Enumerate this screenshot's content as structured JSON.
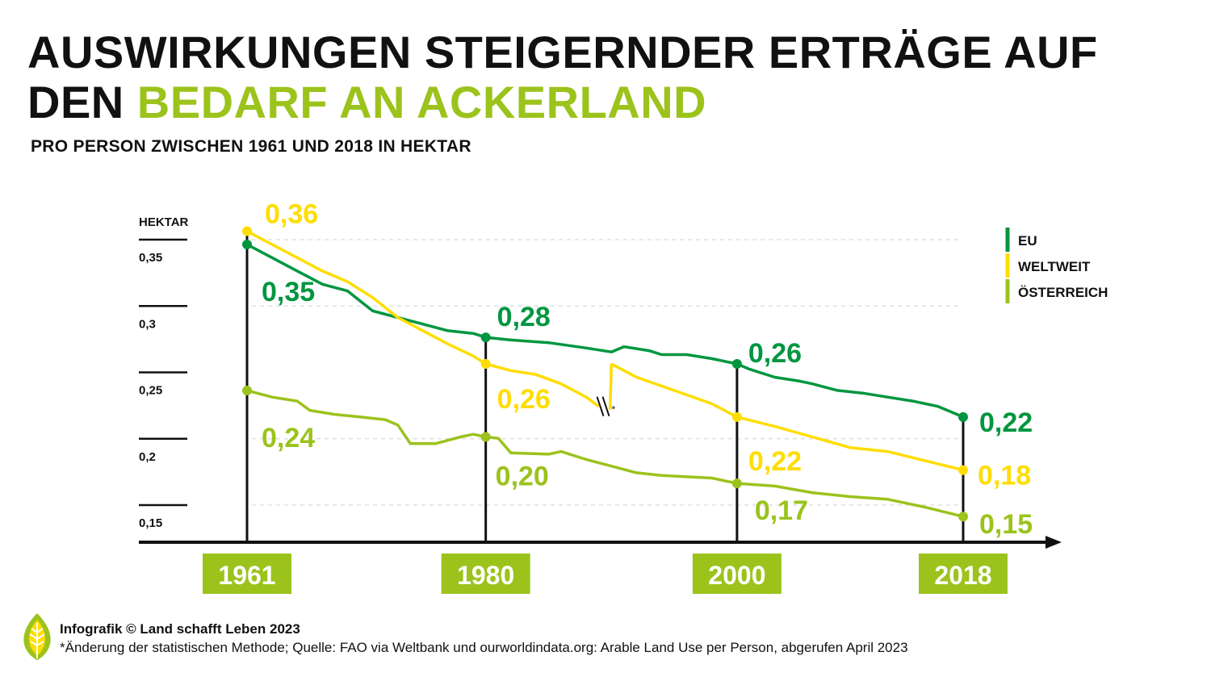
{
  "header": {
    "title_line1": "AUSWIRKUNGEN STEIGERNDER ERTRÄGE AUF",
    "title_line2_plain": "DEN",
    "title_line2_accent": "BEDARF AN ACKERLAND",
    "subtitle": "PRO PERSON ZWISCHEN 1961 UND 2018 IN HEKTAR"
  },
  "colors": {
    "eu": "#00963f",
    "weltweit": "#ffdd00",
    "oesterreich": "#9bc31c",
    "label_bg": "#9bc31c",
    "axis": "#111111"
  },
  "chart_data": {
    "type": "line",
    "ylabel": "HEKTAR",
    "ylim": [
      0.11,
      0.37
    ],
    "xlim": [
      1961,
      2018
    ],
    "y_ticks": [
      {
        "value": 0.35,
        "label": "0,35"
      },
      {
        "value": 0.3,
        "label": "0,3"
      },
      {
        "value": 0.25,
        "label": "0,25"
      },
      {
        "value": 0.2,
        "label": "0,2"
      },
      {
        "value": 0.15,
        "label": "0,15"
      }
    ],
    "grid": true,
    "legend_position": "top-right",
    "x_labels": [
      "1961",
      "1980",
      "2000",
      "2018"
    ],
    "series": [
      {
        "name": "EU",
        "color": "#00963f",
        "x": [
          1961,
          1963,
          1965,
          1967,
          1969,
          1971,
          1973,
          1975,
          1977,
          1979,
          1980,
          1982,
          1985,
          1988,
          1990,
          1991,
          1993,
          1994,
          1996,
          1998,
          2000,
          2001,
          2003,
          2005,
          2006,
          2008,
          2010,
          2012,
          2014,
          2016,
          2018
        ],
        "y": [
          0.35,
          0.34,
          0.33,
          0.32,
          0.315,
          0.3,
          0.295,
          0.29,
          0.285,
          0.283,
          0.28,
          0.278,
          0.276,
          0.272,
          0.269,
          0.273,
          0.27,
          0.267,
          0.267,
          0.264,
          0.26,
          0.256,
          0.25,
          0.247,
          0.245,
          0.24,
          0.238,
          0.235,
          0.232,
          0.228,
          0.22
        ]
      },
      {
        "name": "WELTWEIT",
        "color": "#ffdd00",
        "segments": [
          {
            "x": [
              1961,
              1963,
              1965,
              1967,
              1969,
              1971,
              1973,
              1975,
              1977,
              1979,
              1980,
              1982,
              1984,
              1986,
              1988,
              1989
            ],
            "y": [
              0.36,
              0.35,
              0.34,
              0.33,
              0.322,
              0.31,
              0.295,
              0.285,
              0.275,
              0.266,
              0.26,
              0.255,
              0.252,
              0.245,
              0.235,
              0.228
            ]
          },
          {
            "x": [
              1990,
              1992,
              1995,
              1998,
              2000,
              2003,
              2006,
              2009,
              2012,
              2015,
              2018
            ],
            "y": [
              0.26,
              0.25,
              0.24,
              0.23,
              0.22,
              0.213,
              0.205,
              0.197,
              0.194,
              0.187,
              0.18
            ]
          }
        ],
        "method_change_marker": {
          "x": 1989.5,
          "label": "*"
        }
      },
      {
        "name": "ÖSTERREICH",
        "color": "#9bc31c",
        "x": [
          1961,
          1963,
          1965,
          1966,
          1968,
          1970,
          1972,
          1973,
          1974,
          1976,
          1978,
          1979,
          1980,
          1981,
          1982,
          1985,
          1986,
          1988,
          1990,
          1992,
          1994,
          1996,
          1998,
          2000,
          2003,
          2006,
          2009,
          2012,
          2015,
          2018
        ],
        "y": [
          0.24,
          0.235,
          0.232,
          0.225,
          0.222,
          0.22,
          0.218,
          0.214,
          0.2,
          0.2,
          0.205,
          0.207,
          0.205,
          0.204,
          0.193,
          0.192,
          0.194,
          0.188,
          0.183,
          0.178,
          0.176,
          0.175,
          0.174,
          0.17,
          0.168,
          0.163,
          0.16,
          0.158,
          0.152,
          0.145
        ]
      }
    ],
    "value_labels": [
      {
        "series": "WELTWEIT",
        "x": 1961,
        "y": 0.36,
        "text": "0,36"
      },
      {
        "series": "EU",
        "x": 1961,
        "y": 0.35,
        "text": "0,35"
      },
      {
        "series": "ÖSTERREICH",
        "x": 1961,
        "y": 0.24,
        "text": "0,24"
      },
      {
        "series": "EU",
        "x": 1980,
        "y": 0.28,
        "text": "0,28"
      },
      {
        "series": "WELTWEIT",
        "x": 1980,
        "y": 0.26,
        "text": "0,26"
      },
      {
        "series": "ÖSTERREICH",
        "x": 1980,
        "y": 0.205,
        "text": "0,20"
      },
      {
        "series": "EU",
        "x": 2000,
        "y": 0.26,
        "text": "0,26"
      },
      {
        "series": "WELTWEIT",
        "x": 2000,
        "y": 0.22,
        "text": "0,22"
      },
      {
        "series": "ÖSTERREICH",
        "x": 2000,
        "y": 0.17,
        "text": "0,17"
      },
      {
        "series": "EU",
        "x": 2018,
        "y": 0.22,
        "text": "0,22"
      },
      {
        "series": "WELTWEIT",
        "x": 2018,
        "y": 0.18,
        "text": "0,18"
      },
      {
        "series": "ÖSTERREICH",
        "x": 2018,
        "y": 0.145,
        "text": "0,15"
      }
    ]
  },
  "footer": {
    "credit": "Infografik © Land schafft Leben 2023",
    "note": "*Änderung der statistischen Methode; Quelle: FAO via Weltbank und ourworldindata.org: Arable Land Use per Person, abgerufen April 2023"
  }
}
